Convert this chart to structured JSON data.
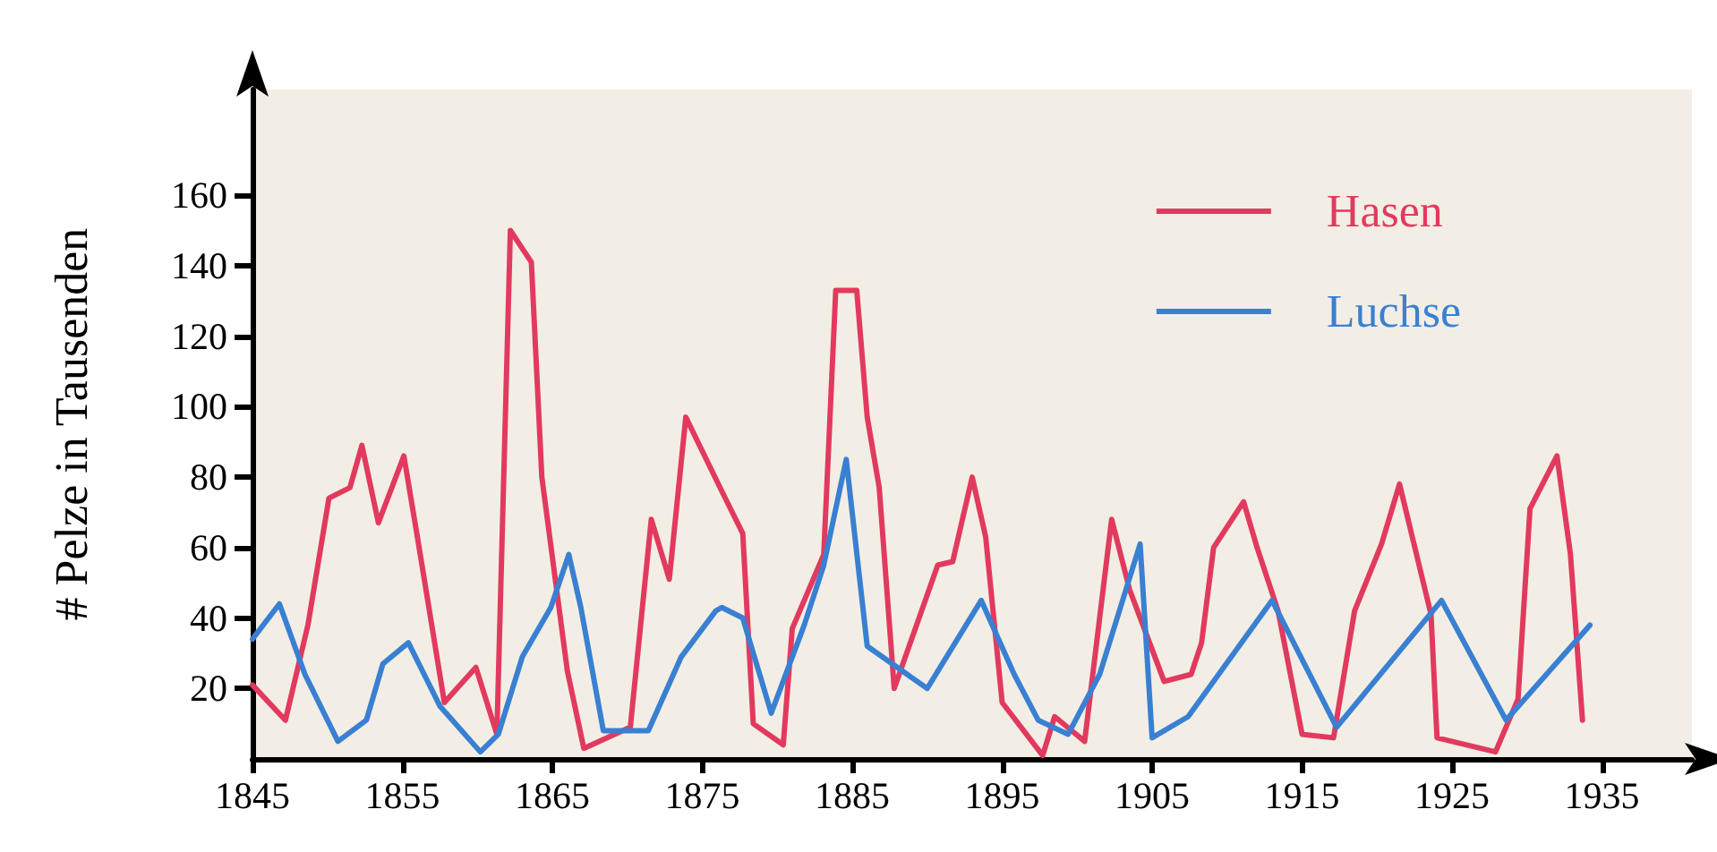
{
  "chart_data": {
    "type": "line",
    "ylabel": "# Pelze in Tausenden",
    "xlim": [
      1845,
      1941
    ],
    "xticks": [
      1845,
      1855,
      1865,
      1875,
      1885,
      1895,
      1905,
      1915,
      1925,
      1935
    ],
    "ylim": [
      0,
      190
    ],
    "yticks": [
      20,
      40,
      60,
      80,
      100,
      120,
      140,
      160
    ],
    "grid": false,
    "legend": "top right",
    "marker": "none",
    "line_style": "solid",
    "series": [
      {
        "name": "Hasen",
        "color": "#e23a5f",
        "x": [
          1845,
          1847.2,
          1848.7,
          1850.1,
          1851.5,
          1852.3,
          1853.4,
          1855.1,
          1856,
          1857.8,
          1859.9,
          1861.3,
          1862.2,
          1863.6,
          1864.3,
          1866,
          1867.1,
          1870.2,
          1871.6,
          1872.8,
          1873.9,
          1876.3,
          1877.7,
          1878.4,
          1880.4,
          1881,
          1883.1,
          1883.9,
          1885.3,
          1886,
          1886.8,
          1887.8,
          1890.7,
          1891.7,
          1893,
          1893.9,
          1895,
          1897.7,
          1898.5,
          1900.5,
          1902.3,
          1903.5,
          1905.8,
          1907.6,
          1908.3,
          1909.1,
          1911.1,
          1912,
          1913.4,
          1915,
          1917.1,
          1918.5,
          1920.3,
          1921.5,
          1923.6,
          1924,
          1927.9,
          1929.4,
          1930.2,
          1932,
          1932.9,
          1933.7
        ],
        "values": [
          21,
          11,
          38,
          74,
          77,
          89,
          67,
          86,
          63,
          16,
          26,
          7,
          150,
          141,
          80,
          25,
          3,
          9,
          68,
          51,
          97,
          76,
          64,
          10,
          4,
          37,
          58,
          133,
          133,
          97,
          77,
          20,
          55,
          56,
          80,
          63,
          16,
          1,
          12,
          5,
          68,
          48,
          22,
          24,
          33,
          60,
          73,
          60,
          42,
          7,
          6,
          42,
          61,
          78,
          41,
          6,
          2,
          17,
          71,
          86,
          58,
          11
        ]
      },
      {
        "name": "Luchse",
        "color": "#3a80d2",
        "x": [
          1845,
          1846.8,
          1848.5,
          1850.7,
          1852.6,
          1853.7,
          1855.4,
          1857.5,
          1860.2,
          1861.4,
          1863,
          1864.9,
          1866.1,
          1866.9,
          1868.4,
          1871.4,
          1873.6,
          1875.9,
          1876.3,
          1877.7,
          1879.6,
          1881.8,
          1883.1,
          1884.6,
          1886,
          1890,
          1893.6,
          1895.8,
          1897.4,
          1899.4,
          1901.5,
          1904.2,
          1905,
          1907.4,
          1913,
          1917.3,
          1924.3,
          1928.6,
          1934.2
        ],
        "values": [
          34,
          44,
          24,
          5,
          11,
          27,
          33,
          15,
          2,
          7,
          29,
          43,
          58,
          43,
          8,
          8,
          29,
          42,
          43,
          40,
          13,
          38,
          55,
          85,
          32,
          20,
          45,
          24,
          11,
          7,
          24,
          61,
          6,
          12,
          45,
          9,
          45,
          11,
          38
        ]
      }
    ]
  }
}
